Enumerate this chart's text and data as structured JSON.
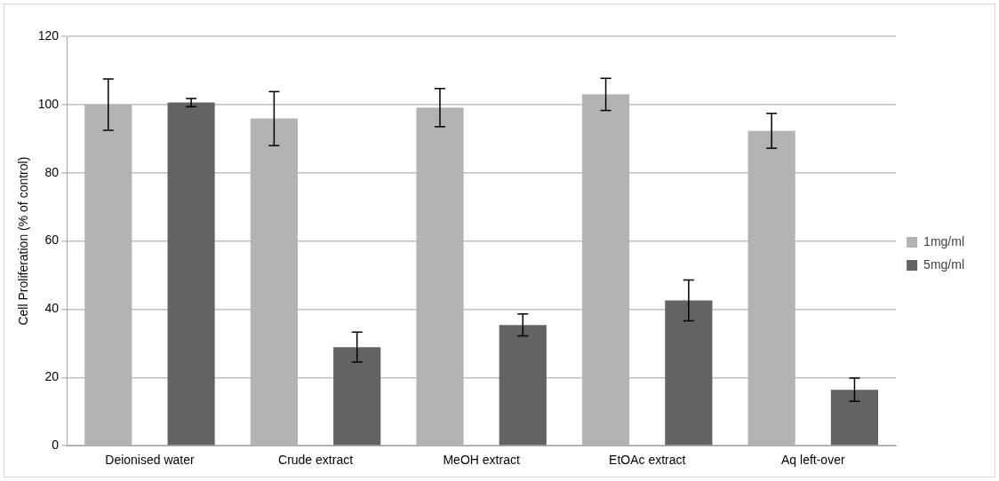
{
  "chart_data": {
    "type": "bar",
    "ylabel": "Cell Proliferation (% of control)",
    "categories": [
      "Deionised water",
      "Crude extract",
      "MeOH extract",
      "EtOAc extract",
      "Aq left-over"
    ],
    "series": [
      {
        "name": "1mg/ml",
        "color": "#b3b3b3",
        "values": [
          100,
          95.9,
          99.1,
          103,
          92.3
        ],
        "errors": [
          7.5,
          7.9,
          5.6,
          4.7,
          5.1
        ]
      },
      {
        "name": "5mg/ml",
        "color": "#636363",
        "values": [
          100.6,
          28.9,
          35.4,
          42.6,
          16.4
        ],
        "errors": [
          1.2,
          4.4,
          3.2,
          6,
          3.4
        ]
      }
    ],
    "ylim": [
      0,
      120
    ],
    "yticks": [
      0,
      20,
      40,
      60,
      80,
      100,
      120
    ],
    "grid": "y",
    "legend": "right"
  }
}
